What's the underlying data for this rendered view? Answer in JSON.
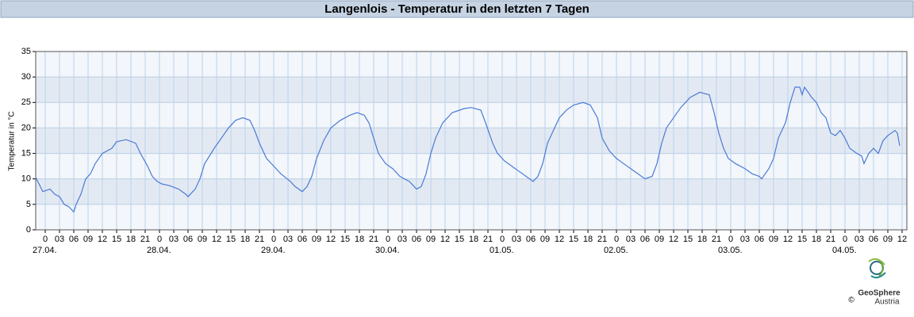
{
  "chart_data": {
    "type": "line",
    "title": "Langenlois - Temperatur in den letzten 7 Tagen",
    "ylabel": "Temperatur in °C",
    "color": "#4a7bd6",
    "grid": true,
    "ylim": [
      0,
      35
    ],
    "yticks": [
      0,
      5,
      10,
      15,
      20,
      25,
      30,
      35
    ],
    "xlim": [
      -2,
      181
    ],
    "xticks": [
      {
        "value": 0,
        "label": "0"
      },
      {
        "value": 3,
        "label": "03"
      },
      {
        "value": 6,
        "label": "06"
      },
      {
        "value": 9,
        "label": "09"
      },
      {
        "value": 12,
        "label": "12"
      },
      {
        "value": 15,
        "label": "15"
      },
      {
        "value": 18,
        "label": "18"
      },
      {
        "value": 21,
        "label": "21"
      },
      {
        "value": 24,
        "label": "0"
      },
      {
        "value": 27,
        "label": "03"
      },
      {
        "value": 30,
        "label": "06"
      },
      {
        "value": 33,
        "label": "09"
      },
      {
        "value": 36,
        "label": "12"
      },
      {
        "value": 39,
        "label": "15"
      },
      {
        "value": 42,
        "label": "18"
      },
      {
        "value": 45,
        "label": "21"
      },
      {
        "value": 48,
        "label": "0"
      },
      {
        "value": 51,
        "label": "03"
      },
      {
        "value": 54,
        "label": "06"
      },
      {
        "value": 57,
        "label": "09"
      },
      {
        "value": 60,
        "label": "12"
      },
      {
        "value": 63,
        "label": "15"
      },
      {
        "value": 66,
        "label": "18"
      },
      {
        "value": 69,
        "label": "21"
      },
      {
        "value": 72,
        "label": "0"
      },
      {
        "value": 75,
        "label": "03"
      },
      {
        "value": 78,
        "label": "06"
      },
      {
        "value": 81,
        "label": "09"
      },
      {
        "value": 84,
        "label": "12"
      },
      {
        "value": 87,
        "label": "15"
      },
      {
        "value": 90,
        "label": "18"
      },
      {
        "value": 93,
        "label": "21"
      },
      {
        "value": 96,
        "label": "0"
      },
      {
        "value": 99,
        "label": "03"
      },
      {
        "value": 102,
        "label": "06"
      },
      {
        "value": 105,
        "label": "09"
      },
      {
        "value": 108,
        "label": "12"
      },
      {
        "value": 111,
        "label": "15"
      },
      {
        "value": 114,
        "label": "18"
      },
      {
        "value": 117,
        "label": "21"
      },
      {
        "value": 120,
        "label": "0"
      },
      {
        "value": 123,
        "label": "03"
      },
      {
        "value": 126,
        "label": "06"
      },
      {
        "value": 129,
        "label": "09"
      },
      {
        "value": 132,
        "label": "12"
      },
      {
        "value": 135,
        "label": "15"
      },
      {
        "value": 138,
        "label": "18"
      },
      {
        "value": 141,
        "label": "21"
      },
      {
        "value": 144,
        "label": "0"
      },
      {
        "value": 147,
        "label": "03"
      },
      {
        "value": 150,
        "label": "06"
      },
      {
        "value": 153,
        "label": "09"
      },
      {
        "value": 156,
        "label": "12"
      },
      {
        "value": 159,
        "label": "15"
      },
      {
        "value": 162,
        "label": "18"
      },
      {
        "value": 165,
        "label": "21"
      },
      {
        "value": 168,
        "label": "0"
      },
      {
        "value": 171,
        "label": "03"
      },
      {
        "value": 174,
        "label": "06"
      },
      {
        "value": 177,
        "label": "09"
      },
      {
        "value": 180,
        "label": "12"
      }
    ],
    "date_labels": [
      {
        "value": 0,
        "label": "27.04."
      },
      {
        "value": 24,
        "label": "28.04."
      },
      {
        "value": 48,
        "label": "29.04."
      },
      {
        "value": 72,
        "label": "30.04."
      },
      {
        "value": 96,
        "label": "01.05."
      },
      {
        "value": 120,
        "label": "02.05."
      },
      {
        "value": 144,
        "label": "03.05."
      },
      {
        "value": 168,
        "label": "04.05."
      }
    ],
    "x": [
      -2,
      -0.5,
      1,
      2,
      3,
      4,
      5,
      6,
      6.5,
      7.5,
      8.5,
      9.5,
      10.5,
      12,
      14,
      15,
      17,
      19,
      20,
      21.5,
      22.5,
      23.5,
      24.5,
      26,
      28,
      29.5,
      30,
      31.5,
      32.5,
      33.5,
      35.5,
      37,
      38.5,
      40,
      41.5,
      43,
      44,
      45,
      46.5,
      48,
      49.5,
      51.5,
      52.5,
      54,
      55,
      56,
      57,
      58.5,
      60,
      62,
      64,
      65.5,
      67,
      68,
      69,
      70,
      71.5,
      73,
      74.5,
      76.5,
      78,
      79,
      80,
      81,
      82,
      83.5,
      85.5,
      88,
      89.5,
      91.5,
      92.5,
      94,
      95,
      96.5,
      98,
      99.5,
      101,
      102.5,
      103.5,
      104.5,
      105.5,
      107,
      108,
      109.5,
      111,
      113,
      114.5,
      116,
      117,
      118.5,
      120,
      121.5,
      123,
      124.5,
      126,
      127.5,
      128.5,
      129.5,
      130.5,
      132,
      133.5,
      135.5,
      137.5,
      139.5,
      140.5,
      141.5,
      142.5,
      143.5,
      145,
      147,
      148.5,
      150,
      150.5,
      152,
      153,
      154,
      155.5,
      156.5,
      157.5,
      158.5,
      159,
      159.5,
      161,
      162,
      163,
      164,
      165,
      166,
      167,
      168,
      169,
      170.5,
      171.5,
      172,
      173,
      174,
      175,
      176,
      177,
      178.5,
      179,
      179.5
    ],
    "values": [
      10.3,
      7.5,
      8,
      7,
      6.5,
      5,
      4.5,
      3.5,
      5,
      7,
      10,
      11,
      13,
      15,
      16,
      17.3,
      17.7,
      17,
      15,
      12.5,
      10.5,
      9.5,
      9,
      8.7,
      8,
      7,
      6.5,
      8,
      10,
      13,
      16,
      18,
      20,
      21.5,
      22,
      21.5,
      19.5,
      17,
      14,
      12.5,
      11,
      9.5,
      8.5,
      7.5,
      8.5,
      10.5,
      14,
      17.5,
      20,
      21.5,
      22.5,
      23,
      22.5,
      21,
      18,
      15,
      13,
      12,
      10.5,
      9.5,
      8,
      8.5,
      11,
      15,
      18,
      21,
      23,
      23.8,
      24,
      23.5,
      21,
      17,
      15,
      13.5,
      12.5,
      11.5,
      10.5,
      9.5,
      10.5,
      13,
      17,
      20,
      22,
      23.5,
      24.5,
      25,
      24.5,
      22,
      18,
      15.5,
      14,
      13,
      12,
      11,
      10,
      10.5,
      13,
      17,
      20,
      22,
      24,
      26,
      27,
      26.5,
      23,
      19,
      16,
      14,
      13,
      12,
      11,
      10.5,
      10,
      12,
      14,
      18,
      21,
      25,
      28,
      28,
      26.5,
      28,
      26,
      25,
      23,
      22,
      19,
      18.5,
      19.5,
      18,
      16,
      15,
      14.5,
      13,
      15,
      16,
      15,
      17.5,
      18.5,
      19.5,
      19,
      16.5
    ]
  },
  "logo": {
    "name": "GeoSphere",
    "sub": "Austria",
    "copyright": "©"
  }
}
